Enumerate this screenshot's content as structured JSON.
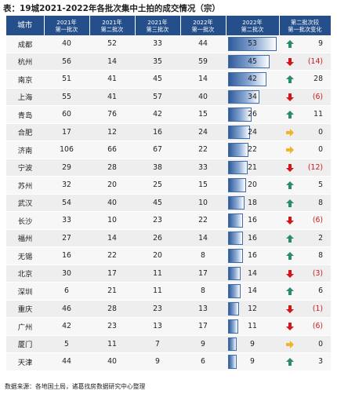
{
  "title": "表：19城2021-2022年各批次集中土拍的成交情况（宗）",
  "headers": {
    "city": "城市",
    "c2021_1": "2021年第一批次",
    "c2021_2": "2021年第二批次",
    "c2021_3": "2021年第三批次",
    "c2022_1": "2022年第一批次",
    "c2022_2": "2022年第二批次",
    "change": "第二批次较第一批次变化"
  },
  "rows": [
    {
      "city": "成都",
      "a": "40",
      "b": "52",
      "c": "33",
      "d": "44",
      "e": 53,
      "chg": "9",
      "dir": "up"
    },
    {
      "city": "杭州",
      "a": "56",
      "b": "14",
      "c": "35",
      "d": "59",
      "e": 45,
      "chg": "(14)",
      "dir": "down"
    },
    {
      "city": "南京",
      "a": "51",
      "b": "41",
      "c": "45",
      "d": "14",
      "e": 42,
      "chg": "28",
      "dir": "up"
    },
    {
      "city": "上海",
      "a": "55",
      "b": "41",
      "c": "57",
      "d": "40",
      "e": 34,
      "chg": "(6)",
      "dir": "down"
    },
    {
      "city": "青岛",
      "a": "60",
      "b": "76",
      "c": "42",
      "d": "15",
      "e": 26,
      "chg": "11",
      "dir": "up"
    },
    {
      "city": "合肥",
      "a": "17",
      "b": "12",
      "c": "16",
      "d": "24",
      "e": 24,
      "chg": "0",
      "dir": "flat"
    },
    {
      "city": "济南",
      "a": "106",
      "b": "66",
      "c": "67",
      "d": "22",
      "e": 22,
      "chg": "0",
      "dir": "flat"
    },
    {
      "city": "宁波",
      "a": "29",
      "b": "28",
      "c": "38",
      "d": "33",
      "e": 21,
      "chg": "(12)",
      "dir": "down"
    },
    {
      "city": "苏州",
      "a": "32",
      "b": "20",
      "c": "25",
      "d": "15",
      "e": 20,
      "chg": "5",
      "dir": "up"
    },
    {
      "city": "武汉",
      "a": "54",
      "b": "40",
      "c": "45",
      "d": "10",
      "e": 18,
      "chg": "8",
      "dir": "up"
    },
    {
      "city": "长沙",
      "a": "33",
      "b": "10",
      "c": "23",
      "d": "22",
      "e": 16,
      "chg": "(6)",
      "dir": "down"
    },
    {
      "city": "福州",
      "a": "27",
      "b": "14",
      "c": "26",
      "d": "14",
      "e": 16,
      "chg": "2",
      "dir": "up"
    },
    {
      "city": "无锡",
      "a": "16",
      "b": "22",
      "c": "20",
      "d": "8",
      "e": 16,
      "chg": "8",
      "dir": "up"
    },
    {
      "city": "北京",
      "a": "30",
      "b": "17",
      "c": "11",
      "d": "17",
      "e": 14,
      "chg": "(3)",
      "dir": "down"
    },
    {
      "city": "深圳",
      "a": "6",
      "b": "21",
      "c": "11",
      "d": "8",
      "e": 14,
      "chg": "6",
      "dir": "up"
    },
    {
      "city": "重庆",
      "a": "46",
      "b": "28",
      "c": "23",
      "d": "13",
      "e": 12,
      "chg": "(1)",
      "dir": "down"
    },
    {
      "city": "广州",
      "a": "42",
      "b": "23",
      "c": "13",
      "d": "17",
      "e": 11,
      "chg": "(6)",
      "dir": "down"
    },
    {
      "city": "厦门",
      "a": "5",
      "b": "11",
      "c": "7",
      "d": "9",
      "e": 9,
      "chg": "0",
      "dir": "flat"
    },
    {
      "city": "天津",
      "a": "44",
      "b": "40",
      "c": "9",
      "d": "6",
      "e": 9,
      "chg": "3",
      "dir": "up"
    }
  ],
  "bar_max": 53,
  "colors": {
    "header": "#244f8a",
    "up": "#2e8b6a",
    "down": "#d0171b",
    "flat": "#f0b429"
  },
  "source": "数据来源：各地国土局，诸葛找房数据研究中心整理"
}
